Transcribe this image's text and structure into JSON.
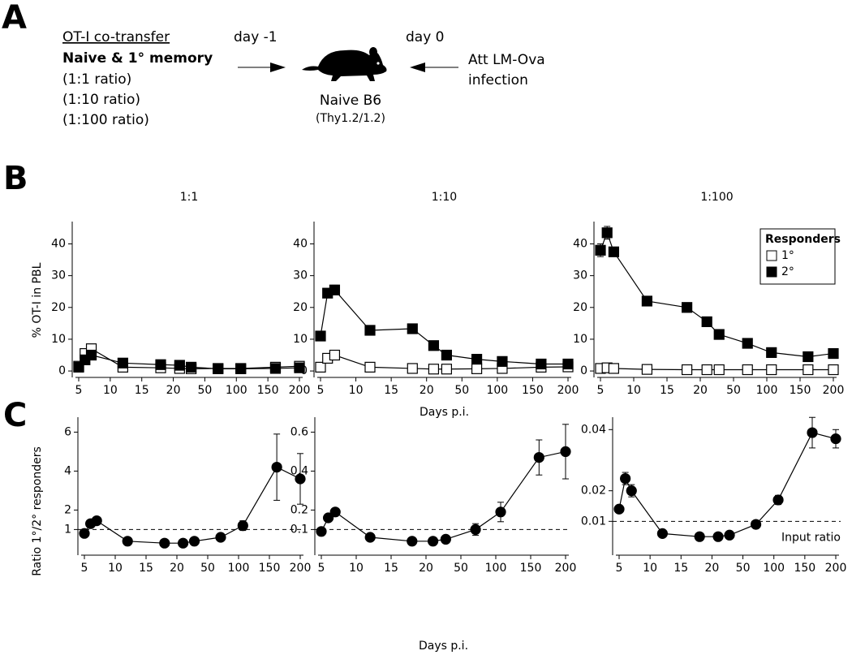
{
  "panel_labels": [
    "A",
    "B",
    "C"
  ],
  "schematic": {
    "cotransfer_title": "OT-I co-transfer",
    "cells": "Naive & 1° memory",
    "ratios": [
      "(1:1 ratio)",
      "(1:10 ratio)",
      "(1:100 ratio)"
    ],
    "day_before": "day -1",
    "day_zero": "day 0",
    "infection": [
      "Att LM-Ova",
      "infection"
    ],
    "host": "Naive B6",
    "host_genotype": "(Thy1.2/1.2)"
  },
  "chart_data": [
    {
      "type": "line",
      "title": "1:1",
      "ylabel": "% OT-I in PBL",
      "marker": "square",
      "x": [
        5,
        6,
        7,
        12,
        18,
        26,
        37,
        71,
        107,
        162,
        200
      ],
      "xlim": [
        5,
        200
      ],
      "xticks": [
        5,
        10,
        15,
        20,
        50,
        100,
        150,
        200
      ],
      "ylim": [
        -1,
        46
      ],
      "yticks": [
        0,
        10,
        20,
        30,
        40
      ],
      "series": [
        {
          "color": "#000000",
          "marker_fill": "#ffffff",
          "values": [
            1.5,
            5.5,
            7,
            1.2,
            1,
            0.8,
            0.7,
            0.8,
            0.8,
            1.2,
            1.5
          ]
        },
        {
          "color": "#000000",
          "marker_fill": "#000000",
          "values": [
            1.2,
            3.5,
            5,
            2.5,
            2,
            1.8,
            1.2,
            0.7,
            0.7,
            0.8,
            1.0
          ]
        }
      ]
    },
    {
      "type": "line",
      "title": "1:10",
      "xlabel": "Days p.i.",
      "marker": "square",
      "x": [
        5,
        6,
        7,
        12,
        18,
        26,
        37,
        71,
        107,
        162,
        200
      ],
      "xlim": [
        5,
        200
      ],
      "xticks": [
        5,
        10,
        15,
        20,
        50,
        100,
        150,
        200
      ],
      "ylim": [
        -1,
        46
      ],
      "yticks": [
        0,
        10,
        20,
        30,
        40
      ],
      "series": [
        {
          "color": "#000000",
          "marker_fill": "#ffffff",
          "values": [
            1.2,
            4,
            5,
            1.2,
            0.8,
            0.6,
            0.6,
            0.7,
            0.8,
            1.2,
            1.3
          ]
        },
        {
          "color": "#000000",
          "marker_fill": "#000000",
          "values": [
            11,
            24.5,
            25.5,
            12.8,
            13.3,
            8,
            5,
            3.7,
            3,
            2.2,
            2.2
          ],
          "errors": [
            null,
            1,
            1.5,
            0.7,
            1.2,
            1,
            0.6,
            null,
            null,
            null,
            null
          ]
        }
      ]
    },
    {
      "type": "line",
      "title": "1:100",
      "marker": "square",
      "legend": "upper right",
      "legend_title": "Responders",
      "x": [
        5,
        6,
        7,
        12,
        18,
        26,
        37,
        71,
        107,
        162,
        200
      ],
      "xlim": [
        5,
        200
      ],
      "xticks": [
        5,
        10,
        15,
        20,
        50,
        100,
        150,
        200
      ],
      "ylim": [
        -1,
        46
      ],
      "yticks": [
        0,
        10,
        20,
        30,
        40
      ],
      "series": [
        {
          "name": "1°",
          "color": "#000000",
          "marker_fill": "#ffffff",
          "values": [
            0.8,
            1,
            0.8,
            0.5,
            0.4,
            0.4,
            0.4,
            0.4,
            0.4,
            0.4,
            0.4
          ]
        },
        {
          "name": "2°",
          "color": "#000000",
          "marker_fill": "#000000",
          "values": [
            38,
            43.5,
            37.5,
            22,
            20,
            15.5,
            11.5,
            8.7,
            5.8,
            4.5,
            5.5
          ],
          "errors": [
            2,
            2,
            1,
            0.7,
            1.5,
            1,
            0.7,
            0.7,
            0.5,
            0.5,
            0.5
          ]
        }
      ]
    },
    {
      "type": "line",
      "ylabel": "Ratio 1°/2° responders",
      "marker": "circle",
      "hline": 1,
      "hline_style": "dashed",
      "x": [
        5,
        6,
        7,
        12,
        18,
        26,
        37,
        71,
        107,
        162,
        200
      ],
      "xlim": [
        5,
        200
      ],
      "xticks": [
        5,
        10,
        15,
        20,
        50,
        100,
        150,
        200
      ],
      "ylim": [
        -0.15,
        6.6
      ],
      "yticks": [
        1,
        2,
        4,
        6
      ],
      "series": [
        {
          "color": "#000000",
          "marker_fill": "#000000",
          "values": [
            0.8,
            1.3,
            1.45,
            0.4,
            0.3,
            0.3,
            0.4,
            0.6,
            1.2,
            4.2,
            3.6
          ],
          "errors": [
            null,
            null,
            null,
            null,
            null,
            null,
            null,
            null,
            0.25,
            1.7,
            1.3
          ]
        }
      ]
    },
    {
      "type": "line",
      "xlabel": "Days p.i.",
      "marker": "circle",
      "hline": 0.1,
      "hline_style": "dashed",
      "x": [
        5,
        6,
        7,
        12,
        18,
        26,
        37,
        71,
        107,
        162,
        200
      ],
      "xlim": [
        5,
        200
      ],
      "xticks": [
        5,
        10,
        15,
        20,
        50,
        100,
        150,
        200
      ],
      "ylim": [
        -0.015,
        0.66
      ],
      "yticks": [
        0.1,
        0.2,
        0.4,
        0.6
      ],
      "series": [
        {
          "color": "#000000",
          "marker_fill": "#000000",
          "values": [
            0.09,
            0.16,
            0.19,
            0.06,
            0.04,
            0.04,
            0.05,
            0.1,
            0.19,
            0.47,
            0.5
          ],
          "errors": [
            null,
            null,
            0.02,
            null,
            null,
            null,
            null,
            0.03,
            0.05,
            0.09,
            0.14
          ]
        }
      ]
    },
    {
      "type": "line",
      "marker": "circle",
      "hline": 0.01,
      "hline_style": "dashed",
      "annotation": "Input ratio",
      "x": [
        5,
        6,
        7,
        12,
        18,
        26,
        37,
        71,
        107,
        162,
        200
      ],
      "xlim": [
        5,
        200
      ],
      "xticks": [
        5,
        10,
        15,
        20,
        50,
        100,
        150,
        200
      ],
      "ylim": [
        0,
        0.043
      ],
      "yticks": [
        0.01,
        0.02,
        0.04
      ],
      "series": [
        {
          "color": "#000000",
          "marker_fill": "#000000",
          "values": [
            0.014,
            0.024,
            0.02,
            0.006,
            0.005,
            0.005,
            0.0055,
            0.009,
            0.017,
            0.039,
            0.037
          ],
          "errors": [
            null,
            0.002,
            0.002,
            null,
            null,
            null,
            null,
            null,
            0.0015,
            0.005,
            0.003
          ]
        }
      ]
    }
  ]
}
